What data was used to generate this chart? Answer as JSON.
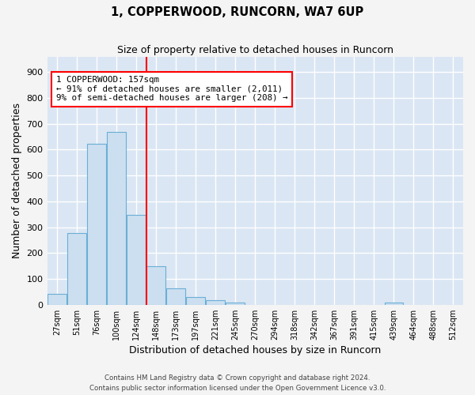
{
  "title": "1, COPPERWOOD, RUNCORN, WA7 6UP",
  "subtitle": "Size of property relative to detached houses in Runcorn",
  "xlabel": "Distribution of detached houses by size in Runcorn",
  "ylabel": "Number of detached properties",
  "bar_color": "#ccdff0",
  "bar_edge_color": "#6aaed6",
  "bg_color": "#dae6f3",
  "grid_color": "#ffffff",
  "bins": [
    "27sqm",
    "51sqm",
    "76sqm",
    "100sqm",
    "124sqm",
    "148sqm",
    "173sqm",
    "197sqm",
    "221sqm",
    "245sqm",
    "270sqm",
    "294sqm",
    "318sqm",
    "342sqm",
    "367sqm",
    "391sqm",
    "415sqm",
    "439sqm",
    "464sqm",
    "488sqm",
    "512sqm"
  ],
  "values": [
    42,
    278,
    622,
    670,
    348,
    150,
    65,
    30,
    18,
    10,
    0,
    0,
    0,
    0,
    0,
    0,
    0,
    10,
    0,
    0,
    0
  ],
  "ylim": [
    0,
    960
  ],
  "yticks": [
    0,
    100,
    200,
    300,
    400,
    500,
    600,
    700,
    800,
    900
  ],
  "vline_bin_index": 5,
  "annotation_line1": "1 COPPERWOOD: 157sqm",
  "annotation_line2": "← 91% of detached houses are smaller (2,011)",
  "annotation_line3": "9% of semi-detached houses are larger (208) →",
  "footer1": "Contains HM Land Registry data © Crown copyright and database right 2024.",
  "footer2": "Contains public sector information licensed under the Open Government Licence v3.0.",
  "fig_bg": "#f4f4f4"
}
